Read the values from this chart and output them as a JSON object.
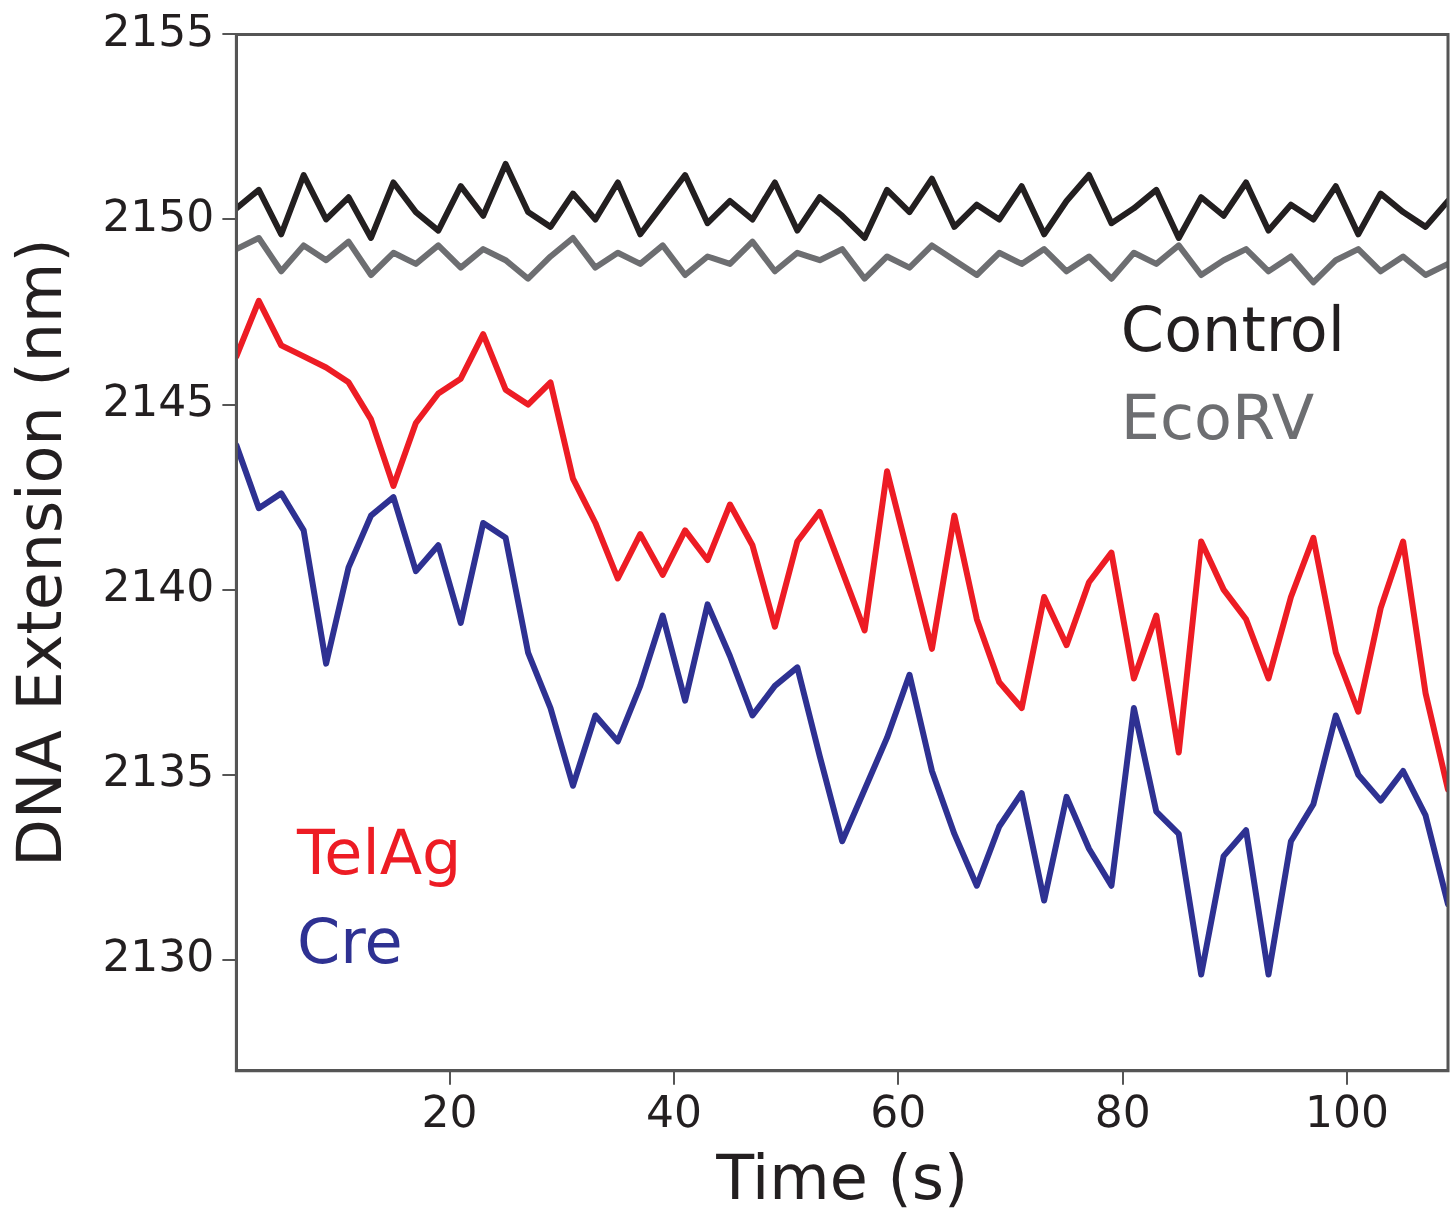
{
  "chart_data": {
    "type": "line",
    "xlabel": "Time (s)",
    "ylabel": "DNA Extension (nm)",
    "x": [
      1,
      3,
      5,
      7,
      9,
      11,
      13,
      15,
      17,
      19,
      21,
      23,
      25,
      27,
      29,
      31,
      33,
      35,
      37,
      39,
      41,
      43,
      45,
      47,
      49,
      51,
      53,
      55,
      57,
      59,
      61,
      63,
      65,
      67,
      69,
      71,
      73,
      75,
      77,
      79,
      81,
      83,
      85,
      87,
      89,
      91,
      93,
      95,
      97,
      99,
      101,
      103,
      105,
      107,
      109
    ],
    "series": [
      {
        "name": "Control",
        "color": "#231f20",
        "values": [
          2150.3,
          2150.8,
          2149.6,
          2151.2,
          2150.0,
          2150.6,
          2149.5,
          2151.0,
          2150.2,
          2149.7,
          2150.9,
          2150.1,
          2151.5,
          2150.2,
          2149.8,
          2150.7,
          2150.0,
          2151.0,
          2149.6,
          2150.4,
          2151.2,
          2149.9,
          2150.5,
          2150.0,
          2151.0,
          2149.7,
          2150.6,
          2150.1,
          2149.5,
          2150.8,
          2150.2,
          2151.1,
          2149.8,
          2150.4,
          2150.0,
          2150.9,
          2149.6,
          2150.5,
          2151.2,
          2149.9,
          2150.3,
          2150.8,
          2149.5,
          2150.6,
          2150.1,
          2151.0,
          2149.7,
          2150.4,
          2150.0,
          2150.9,
          2149.6,
          2150.7,
          2150.2,
          2149.8,
          2150.5
        ]
      },
      {
        "name": "EcoRV",
        "color": "#6d6e71",
        "values": [
          2149.2,
          2149.5,
          2148.6,
          2149.3,
          2148.9,
          2149.4,
          2148.5,
          2149.1,
          2148.8,
          2149.3,
          2148.7,
          2149.2,
          2148.9,
          2148.4,
          2149.0,
          2149.5,
          2148.7,
          2149.1,
          2148.8,
          2149.3,
          2148.5,
          2149.0,
          2148.8,
          2149.4,
          2148.6,
          2149.1,
          2148.9,
          2149.2,
          2148.4,
          2149.0,
          2148.7,
          2149.3,
          2148.9,
          2148.5,
          2149.1,
          2148.8,
          2149.2,
          2148.6,
          2149.0,
          2148.4,
          2149.1,
          2148.8,
          2149.3,
          2148.5,
          2148.9,
          2149.2,
          2148.6,
          2149.0,
          2148.3,
          2148.9,
          2149.2,
          2148.6,
          2149.0,
          2148.5,
          2148.8
        ]
      },
      {
        "name": "TelAg",
        "color": "#ed1c24",
        "values": [
          2146.3,
          2147.8,
          2146.6,
          2146.3,
          2146.0,
          2145.6,
          2144.6,
          2142.8,
          2144.5,
          2145.3,
          2145.7,
          2146.9,
          2145.4,
          2145.0,
          2145.6,
          2143.0,
          2141.8,
          2140.3,
          2141.5,
          2140.4,
          2141.6,
          2140.8,
          2142.3,
          2141.2,
          2139.0,
          2141.3,
          2142.1,
          2140.5,
          2138.9,
          2143.2,
          2140.8,
          2138.4,
          2142.0,
          2139.2,
          2137.5,
          2136.8,
          2139.8,
          2138.5,
          2140.2,
          2141.0,
          2137.6,
          2139.3,
          2135.6,
          2141.3,
          2140.0,
          2139.2,
          2137.6,
          2139.8,
          2141.4,
          2138.3,
          2136.7,
          2139.5,
          2141.3,
          2137.2,
          2134.6
        ]
      },
      {
        "name": "Cre",
        "color": "#2e3192",
        "values": [
          2143.9,
          2142.2,
          2142.6,
          2141.6,
          2138.0,
          2140.6,
          2142.0,
          2142.5,
          2140.5,
          2141.2,
          2139.1,
          2141.8,
          2141.4,
          2138.3,
          2136.8,
          2134.7,
          2136.6,
          2135.9,
          2137.4,
          2139.3,
          2137.0,
          2139.6,
          2138.2,
          2136.6,
          2137.4,
          2137.9,
          2135.5,
          2133.2,
          2134.6,
          2136.0,
          2137.7,
          2135.1,
          2133.4,
          2132.0,
          2133.6,
          2134.5,
          2131.6,
          2134.4,
          2133.0,
          2132.0,
          2136.8,
          2134.0,
          2133.4,
          2129.6,
          2132.8,
          2133.5,
          2129.6,
          2133.2,
          2134.2,
          2136.6,
          2135.0,
          2134.3,
          2135.1,
          2133.9,
          2131.5
        ]
      }
    ],
    "xlim": [
      1,
      109
    ],
    "xticks": [
      20,
      40,
      60,
      80,
      100
    ],
    "ylim": [
      2127,
      2155
    ],
    "yticks": [
      2130,
      2135,
      2140,
      2145,
      2150,
      2155
    ],
    "grid": false,
    "legend": false,
    "marker": "none",
    "line_style": "solid"
  }
}
